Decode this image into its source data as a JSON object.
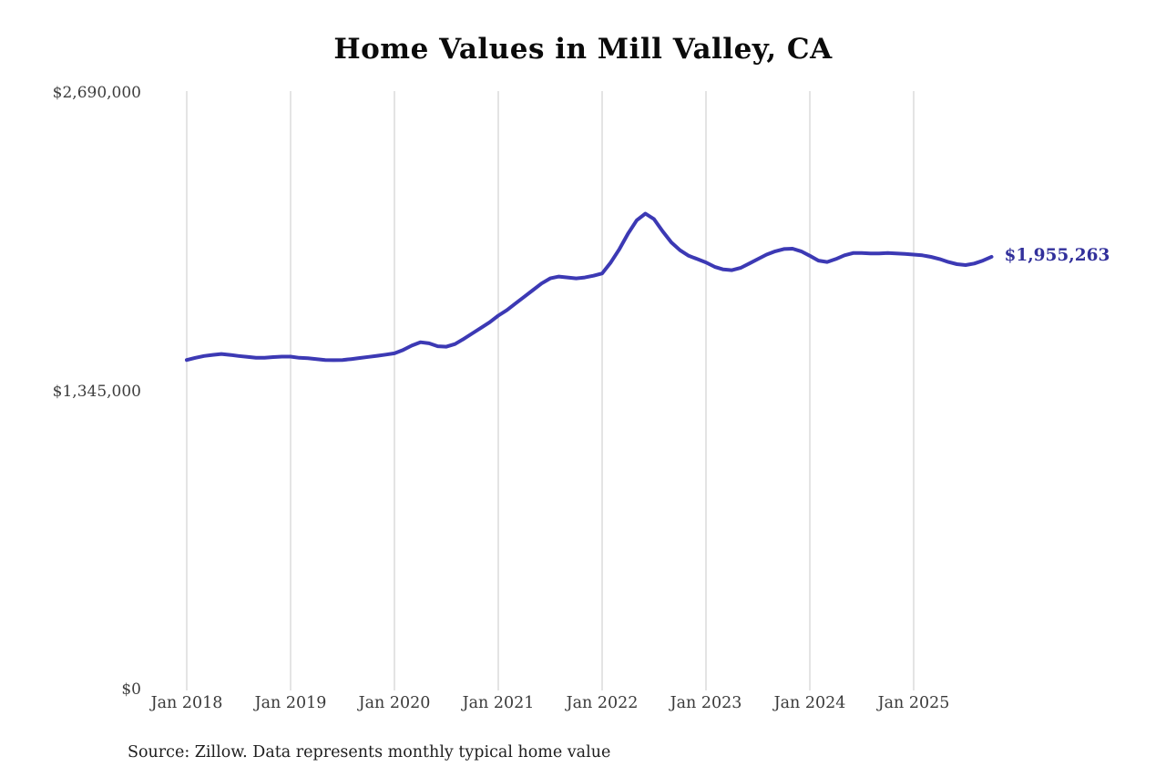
{
  "title": "Home Values in Mill Valley, CA",
  "source_note": "Source: Zillow. Data represents monthly typical home value",
  "end_label": "$1,955,263",
  "colors": {
    "line": "#3c39b4",
    "end_label": "#32309b",
    "grid": "#c9c9c9",
    "axis_text": "#3d3d3d"
  },
  "chart_data": {
    "type": "line",
    "title": "Home Values in Mill Valley, CA",
    "xlabel": "",
    "ylabel": "",
    "ylim": [
      0,
      2690000
    ],
    "grid": "vertical-only",
    "legend": "none",
    "x_start": "2018-01",
    "x_interval": "monthly",
    "x_tick_labels": [
      "Jan 2018",
      "Jan 2019",
      "Jan 2020",
      "Jan 2021",
      "Jan 2022",
      "Jan 2023",
      "Jan 2024",
      "Jan 2025"
    ],
    "y_tick_labels": [
      "$0",
      "$1,345,000",
      "$2,690,000"
    ],
    "series": [
      {
        "name": "Monthly typical home value",
        "last_value_label": "$1,955,263",
        "values": [
          1490000,
          1500000,
          1508000,
          1513000,
          1517000,
          1513000,
          1508000,
          1504000,
          1500000,
          1500000,
          1503000,
          1505000,
          1505000,
          1500000,
          1498000,
          1494000,
          1490000,
          1489000,
          1490000,
          1494000,
          1499000,
          1504000,
          1509000,
          1514000,
          1520000,
          1535000,
          1555000,
          1570000,
          1565000,
          1552000,
          1550000,
          1562000,
          1585000,
          1610000,
          1635000,
          1660000,
          1690000,
          1715000,
          1745000,
          1775000,
          1805000,
          1835000,
          1858000,
          1866000,
          1862000,
          1858000,
          1862000,
          1870000,
          1880000,
          1930000,
          1990000,
          2060000,
          2120000,
          2150000,
          2125000,
          2070000,
          2020000,
          1985000,
          1960000,
          1945000,
          1930000,
          1910000,
          1898000,
          1895000,
          1905000,
          1925000,
          1945000,
          1965000,
          1980000,
          1990000,
          1992000,
          1980000,
          1960000,
          1938000,
          1932000,
          1945000,
          1962000,
          1972000,
          1972000,
          1970000,
          1970000,
          1972000,
          1970000,
          1968000,
          1965000,
          1962000,
          1955000,
          1945000,
          1932000,
          1922000,
          1918000,
          1925000,
          1938000,
          1955263
        ]
      }
    ]
  }
}
